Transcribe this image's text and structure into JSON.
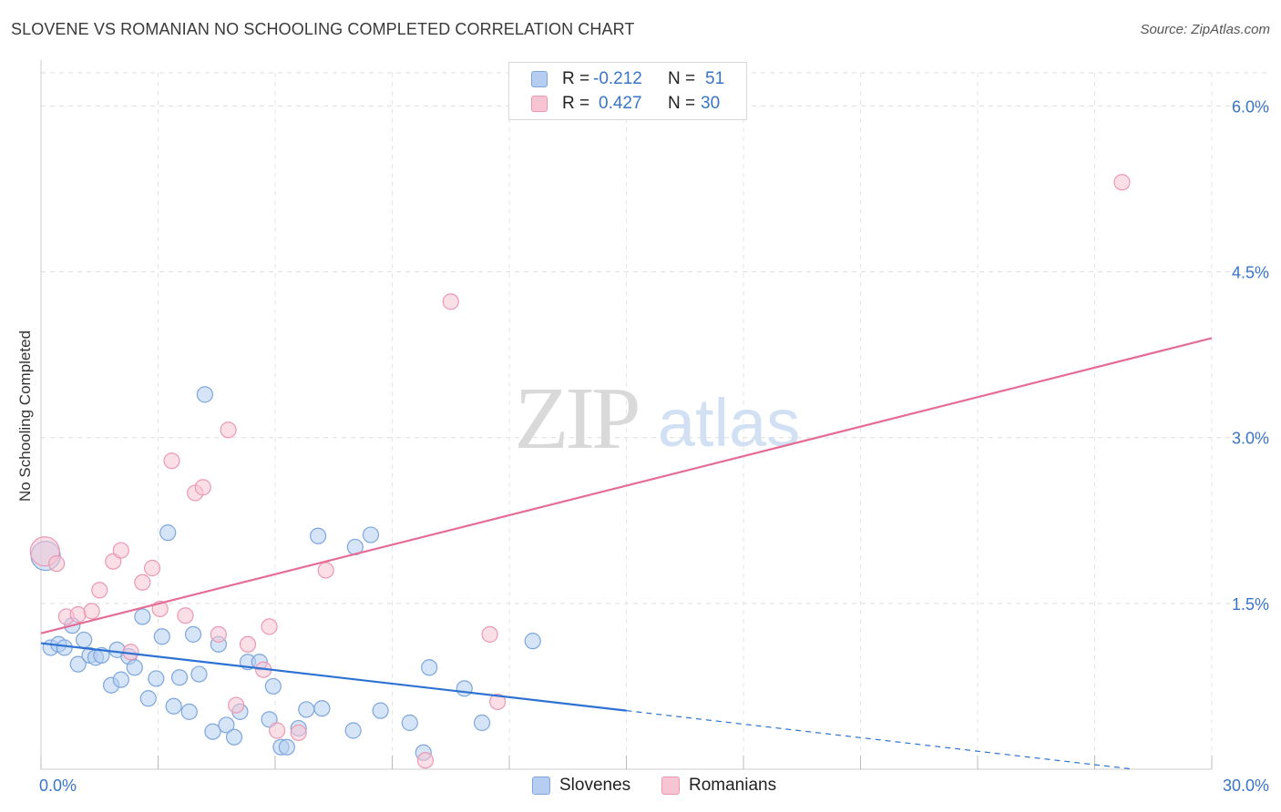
{
  "title": "SLOVENE VS ROMANIAN NO SCHOOLING COMPLETED CORRELATION CHART",
  "source": "Source: ZipAtlas.com",
  "watermark": {
    "zip": "ZIP",
    "atlas": "atlas"
  },
  "legend": {
    "slovenes": {
      "r_label": "R =",
      "r_value": "-0.212",
      "n_label": "N =",
      "n_value": "51"
    },
    "romanians": {
      "r_label": "R =",
      "r_value": "0.427",
      "n_label": "N =",
      "n_value": "30"
    }
  },
  "bottom_legend": {
    "slovenes": "Slovenes",
    "romanians": "Romanians"
  },
  "colors": {
    "blue_fill": "#b4cdf0",
    "blue_stroke": "#7ea6dc",
    "blue_line": "#2d72d2",
    "pink_fill": "#f7c4d3",
    "pink_stroke": "#ec98b3",
    "pink_line": "#e56d93",
    "tick_label": "#3a74c9",
    "grid": "#dddddd"
  },
  "chart_data": {
    "type": "scatter",
    "title": "SLOVENE VS ROMANIAN NO SCHOOLING COMPLETED CORRELATION CHART",
    "xlabel": "",
    "ylabel": "No Schooling Completed",
    "xlim": [
      0,
      30
    ],
    "ylim": [
      0,
      6.3
    ],
    "x_tick_labels": [
      {
        "x": 0,
        "label": "0.0%"
      },
      {
        "x": 30,
        "label": "30.0%"
      }
    ],
    "y_tick_labels": [
      {
        "y": 1.5,
        "label": "1.5%"
      },
      {
        "y": 3.0,
        "label": "3.0%"
      },
      {
        "y": 4.5,
        "label": "4.5%"
      },
      {
        "y": 6.0,
        "label": "6.0%"
      }
    ],
    "series": [
      {
        "name": "Slovenes",
        "color": "blue",
        "points": [
          {
            "x": 0.12,
            "y": 1.93,
            "big": true
          },
          {
            "x": 0.25,
            "y": 1.1
          },
          {
            "x": 0.45,
            "y": 1.13
          },
          {
            "x": 0.6,
            "y": 1.1
          },
          {
            "x": 0.8,
            "y": 1.3
          },
          {
            "x": 0.95,
            "y": 0.95
          },
          {
            "x": 1.1,
            "y": 1.17
          },
          {
            "x": 1.25,
            "y": 1.03
          },
          {
            "x": 1.4,
            "y": 1.01
          },
          {
            "x": 1.55,
            "y": 1.03
          },
          {
            "x": 1.8,
            "y": 0.76
          },
          {
            "x": 1.95,
            "y": 1.08
          },
          {
            "x": 2.05,
            "y": 0.81
          },
          {
            "x": 2.25,
            "y": 1.02
          },
          {
            "x": 2.4,
            "y": 0.92
          },
          {
            "x": 2.6,
            "y": 1.38
          },
          {
            "x": 2.75,
            "y": 0.64
          },
          {
            "x": 2.95,
            "y": 0.82
          },
          {
            "x": 3.1,
            "y": 1.2
          },
          {
            "x": 3.25,
            "y": 2.14
          },
          {
            "x": 3.4,
            "y": 0.57
          },
          {
            "x": 3.55,
            "y": 0.83
          },
          {
            "x": 3.8,
            "y": 0.52
          },
          {
            "x": 3.9,
            "y": 1.22
          },
          {
            "x": 4.05,
            "y": 0.86
          },
          {
            "x": 4.2,
            "y": 3.39
          },
          {
            "x": 4.4,
            "y": 0.34
          },
          {
            "x": 4.55,
            "y": 1.13
          },
          {
            "x": 4.75,
            "y": 0.4
          },
          {
            "x": 4.95,
            "y": 0.29
          },
          {
            "x": 5.1,
            "y": 0.52
          },
          {
            "x": 5.3,
            "y": 0.97
          },
          {
            "x": 5.6,
            "y": 0.97
          },
          {
            "x": 5.85,
            "y": 0.45
          },
          {
            "x": 5.95,
            "y": 0.75
          },
          {
            "x": 6.15,
            "y": 0.2
          },
          {
            "x": 6.3,
            "y": 0.2
          },
          {
            "x": 6.6,
            "y": 0.37
          },
          {
            "x": 6.8,
            "y": 0.54
          },
          {
            "x": 7.1,
            "y": 2.11
          },
          {
            "x": 7.2,
            "y": 0.55
          },
          {
            "x": 8.0,
            "y": 0.35
          },
          {
            "x": 8.05,
            "y": 2.01
          },
          {
            "x": 8.45,
            "y": 2.12
          },
          {
            "x": 8.7,
            "y": 0.53
          },
          {
            "x": 9.45,
            "y": 0.42
          },
          {
            "x": 9.8,
            "y": 0.15
          },
          {
            "x": 9.95,
            "y": 0.92
          },
          {
            "x": 10.85,
            "y": 0.73
          },
          {
            "x": 11.3,
            "y": 0.42
          },
          {
            "x": 12.6,
            "y": 1.16
          }
        ],
        "trend": {
          "x1": 0.0,
          "y1": 1.14,
          "x2": 15.0,
          "y2": 0.53,
          "dash_to_x": 28.0,
          "dash_to_y": 0.0
        }
      },
      {
        "name": "Romanians",
        "color": "pink",
        "points": [
          {
            "x": 0.1,
            "y": 1.97,
            "big": true
          },
          {
            "x": 0.4,
            "y": 1.86
          },
          {
            "x": 0.65,
            "y": 1.38
          },
          {
            "x": 0.95,
            "y": 1.4
          },
          {
            "x": 1.3,
            "y": 1.43
          },
          {
            "x": 1.5,
            "y": 1.62
          },
          {
            "x": 1.85,
            "y": 1.88
          },
          {
            "x": 2.05,
            "y": 1.98
          },
          {
            "x": 2.3,
            "y": 1.06
          },
          {
            "x": 2.6,
            "y": 1.69
          },
          {
            "x": 2.85,
            "y": 1.82
          },
          {
            "x": 3.05,
            "y": 1.45
          },
          {
            "x": 3.35,
            "y": 2.79
          },
          {
            "x": 3.7,
            "y": 1.39
          },
          {
            "x": 3.95,
            "y": 2.5
          },
          {
            "x": 4.15,
            "y": 2.55
          },
          {
            "x": 4.55,
            "y": 1.22
          },
          {
            "x": 4.8,
            "y": 3.07
          },
          {
            "x": 5.0,
            "y": 0.58
          },
          {
            "x": 5.3,
            "y": 1.13
          },
          {
            "x": 5.7,
            "y": 0.9
          },
          {
            "x": 5.85,
            "y": 1.29
          },
          {
            "x": 6.05,
            "y": 0.35
          },
          {
            "x": 6.6,
            "y": 0.33
          },
          {
            "x": 7.3,
            "y": 1.8
          },
          {
            "x": 9.85,
            "y": 0.08
          },
          {
            "x": 10.5,
            "y": 4.23
          },
          {
            "x": 11.5,
            "y": 1.22
          },
          {
            "x": 11.7,
            "y": 0.61
          },
          {
            "x": 27.7,
            "y": 5.31
          }
        ],
        "trend": {
          "x1": 0.0,
          "y1": 1.23,
          "x2": 30.0,
          "y2": 3.9
        }
      }
    ],
    "legend": [
      {
        "name": "Slovenes",
        "R": -0.212,
        "N": 51
      },
      {
        "name": "Romanians",
        "R": 0.427,
        "N": 30
      }
    ],
    "grid": true,
    "legend_position": "top-center"
  }
}
